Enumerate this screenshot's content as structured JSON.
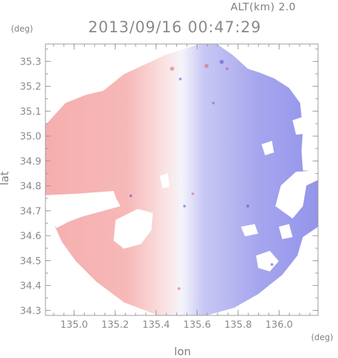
{
  "header": {
    "altitude_label": "ALT(km) 2.0",
    "timestamp": "2013/09/16 00:47:29"
  },
  "axes": {
    "y_unit": "(deg)",
    "x_unit": "(deg)",
    "x_name": "lon",
    "y_name": "lat"
  },
  "chart_data": {
    "type": "heatmap",
    "xlabel": "lon",
    "ylabel": "lat",
    "xlim": [
      134.86,
      136.19
    ],
    "ylim": [
      34.28,
      35.37
    ],
    "x_ticks": [
      135.0,
      135.2,
      135.4,
      135.6,
      135.8,
      136.0
    ],
    "x_tick_labels": [
      "135.0",
      "135.2",
      "135.4",
      "135.6",
      "135.8",
      "136.0"
    ],
    "y_ticks": [
      34.3,
      34.4,
      34.5,
      34.6,
      34.7,
      34.8,
      34.9,
      35.0,
      35.1,
      35.2,
      35.3
    ],
    "y_tick_labels": [
      "34.3",
      "34.4",
      "34.5",
      "34.6",
      "34.7",
      "34.8",
      "34.9",
      "35.0",
      "35.1",
      "35.2",
      "35.3"
    ],
    "radar_center": {
      "lon": 135.52,
      "lat": 34.83
    },
    "radar_range_lat": 0.55,
    "negative_color": "#7070e8",
    "positive_color": "#f08a8a",
    "zero_color": "#ffffff",
    "grid": false
  }
}
